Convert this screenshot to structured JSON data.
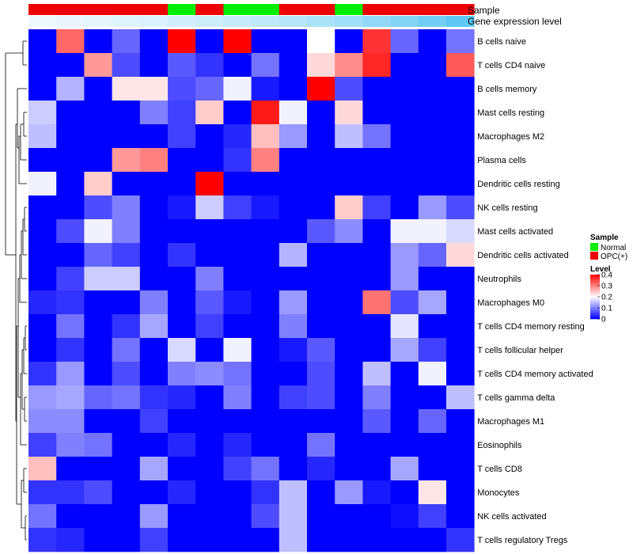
{
  "chart_data": {
    "type": "heatmap",
    "title": "",
    "annotation_labels": {
      "sample": "Sample",
      "gene": "Gene expression level"
    },
    "row_labels": [
      "B cells naive",
      "T cells CD4 naive",
      "B cells memory",
      "Mast cells resting",
      "Macrophages M2",
      "Plasma cells",
      "Dendritic cells resting",
      "NK cells resting",
      "Mast cells activated",
      "Dendritic cells activated",
      "Neutrophils",
      "Macrophages M0",
      "T cells CD4 memory resting",
      "T cells follicular helper",
      "T cells CD4 memory activated",
      "T cells gamma delta",
      "Macrophages M1",
      "Eosinophils",
      "T cells CD8",
      "Monocytes",
      "NK cells activated",
      "T cells regulatory  Tregs"
    ],
    "sample_groups": [
      "OPC(+)",
      "OPC(+)",
      "OPC(+)",
      "OPC(+)",
      "OPC(+)",
      "Normal",
      "OPC(+)",
      "Normal",
      "Normal",
      "OPC(+)",
      "OPC(+)",
      "Normal",
      "OPC(+)",
      "OPC(+)",
      "OPC(+)",
      "OPC(+)"
    ],
    "gene_expression": [
      0.02,
      0.05,
      0.08,
      0.12,
      0.15,
      0.2,
      0.24,
      0.28,
      0.33,
      0.38,
      0.45,
      0.52,
      0.62,
      0.72,
      0.82,
      0.95
    ],
    "values": [
      [
        0,
        0.32,
        0,
        0.08,
        0,
        0.4,
        0,
        0.4,
        0,
        0,
        0.2,
        0,
        0.36,
        0.08,
        0,
        0.09
      ],
      [
        0,
        0,
        0.28,
        0.06,
        0,
        0.07,
        0.04,
        0,
        0.09,
        0,
        0.23,
        0.29,
        0.37,
        0,
        0,
        0.33
      ],
      [
        0,
        0.14,
        0,
        0.22,
        0.22,
        0.06,
        0.08,
        0.19,
        0.02,
        0,
        0.4,
        0.06,
        0,
        0,
        0,
        0
      ],
      [
        0.16,
        0,
        0,
        0,
        0.1,
        0.05,
        0.24,
        0,
        0.38,
        0.19,
        0,
        0.23,
        0,
        0,
        0,
        0
      ],
      [
        0.15,
        0,
        0,
        0,
        0,
        0.05,
        0,
        0.03,
        0.25,
        0.12,
        0,
        0.15,
        0.09,
        0,
        0,
        0
      ],
      [
        0,
        0,
        0,
        0.28,
        0.3,
        0,
        0,
        0.04,
        0.3,
        0,
        0,
        0,
        0,
        0,
        0,
        0
      ],
      [
        0.19,
        0,
        0.24,
        0,
        0,
        0,
        0.4,
        0,
        0,
        0,
        0,
        0,
        0,
        0,
        0,
        0
      ],
      [
        0,
        0,
        0.06,
        0.1,
        0,
        0.02,
        0.16,
        0.05,
        0.02,
        0,
        0,
        0.24,
        0.05,
        0,
        0.12,
        0.06
      ],
      [
        0,
        0.06,
        0.19,
        0.1,
        0,
        0,
        0,
        0,
        0,
        0,
        0.07,
        0.11,
        0,
        0.19,
        0.19,
        0.17
      ],
      [
        0,
        0,
        0.08,
        0.05,
        0,
        0.04,
        0,
        0,
        0,
        0.14,
        0,
        0,
        0,
        0.12,
        0.08,
        0.23
      ],
      [
        0,
        0.05,
        0.16,
        0.16,
        0,
        0,
        0.1,
        0,
        0,
        0,
        0,
        0,
        0,
        0.12,
        0,
        0
      ],
      [
        0.03,
        0.04,
        0,
        0,
        0.1,
        0,
        0.07,
        0.02,
        0,
        0.12,
        0,
        0,
        0.31,
        0.06,
        0.13,
        0
      ],
      [
        0,
        0.09,
        0,
        0.04,
        0.13,
        0,
        0.05,
        0,
        0,
        0.1,
        0,
        0,
        0,
        0.18,
        0,
        0
      ],
      [
        0,
        0.04,
        0,
        0.09,
        0,
        0.17,
        0,
        0.19,
        0,
        0.02,
        0.07,
        0,
        0,
        0.13,
        0.05,
        0
      ],
      [
        0.04,
        0.12,
        0,
        0.06,
        0,
        0.1,
        0.11,
        0.09,
        0,
        0,
        0.06,
        0,
        0.15,
        0,
        0.19,
        0
      ],
      [
        0.12,
        0.13,
        0.08,
        0.09,
        0.04,
        0.03,
        0,
        0.1,
        0,
        0.05,
        0.06,
        0,
        0.1,
        0,
        0,
        0.15
      ],
      [
        0.11,
        0.11,
        0,
        0,
        0.05,
        0,
        0,
        0,
        0,
        0,
        0,
        0,
        0.07,
        0,
        0.08,
        0
      ],
      [
        0.05,
        0.1,
        0.09,
        0,
        0,
        0.03,
        0,
        0.03,
        0,
        0,
        0.09,
        0,
        0,
        0,
        0,
        0
      ],
      [
        0.25,
        0,
        0,
        0,
        0.13,
        0,
        0,
        0.05,
        0.09,
        0,
        0.03,
        0,
        0,
        0.13,
        0,
        0
      ],
      [
        0.04,
        0.04,
        0.06,
        0,
        0,
        0.03,
        0,
        0,
        0.04,
        0.15,
        0,
        0.12,
        0.02,
        0,
        0.22,
        0
      ],
      [
        0.09,
        0,
        0,
        0,
        0.12,
        0,
        0,
        0,
        0.06,
        0.15,
        0,
        0,
        0,
        0.01,
        0.05,
        0
      ],
      [
        0.04,
        0.03,
        0,
        0,
        0.05,
        0,
        0,
        0,
        0,
        0.15,
        0,
        0,
        0,
        0,
        0,
        0.04
      ]
    ],
    "legend": {
      "sample_title": "Sample",
      "sample_entries": [
        {
          "name": "Normal",
          "color": "#00ee00"
        },
        {
          "name": "OPC(+)",
          "color": "#ee0000"
        }
      ],
      "level_title": "Level",
      "level_ticks": [
        "0.4",
        "0.3",
        "0.2",
        "0.1",
        "0"
      ],
      "level_tick_values": [
        0.4,
        0.3,
        0.2,
        0.1,
        0
      ],
      "range": [
        0,
        0.4
      ]
    },
    "colors": {
      "low": "#0000ff",
      "mid": "#ffffff",
      "high": "#ff0000",
      "gene_low": "#f2f9fd",
      "gene_high": "#56c5f2"
    },
    "dendrogram": "row clustering tree on left"
  }
}
